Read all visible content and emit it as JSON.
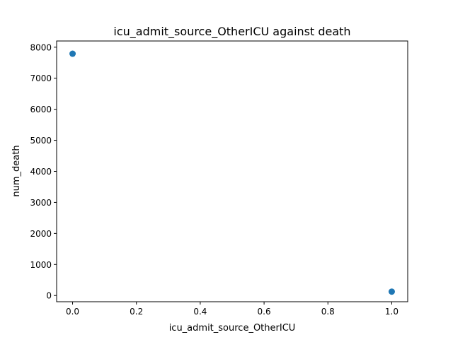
{
  "chart_data": {
    "type": "scatter",
    "title": "icu_admit_source_OtherICU against death",
    "xlabel": "icu_admit_source_OtherICU",
    "ylabel": "num_death",
    "xlim": [
      -0.05,
      1.05
    ],
    "ylim": [
      -200,
      8200
    ],
    "xticks": [
      0.0,
      0.2,
      0.4,
      0.6,
      0.8,
      1.0
    ],
    "xtick_labels": [
      "0.0",
      "0.2",
      "0.4",
      "0.6",
      "0.8",
      "1.0"
    ],
    "yticks": [
      0,
      1000,
      2000,
      3000,
      4000,
      5000,
      6000,
      7000,
      8000
    ],
    "ytick_labels": [
      "0",
      "1000",
      "2000",
      "3000",
      "4000",
      "5000",
      "6000",
      "7000",
      "8000"
    ],
    "grid": false,
    "points": [
      {
        "x": 0,
        "y": 7790
      },
      {
        "x": 1,
        "y": 125
      }
    ],
    "color": "#1f77b4"
  }
}
